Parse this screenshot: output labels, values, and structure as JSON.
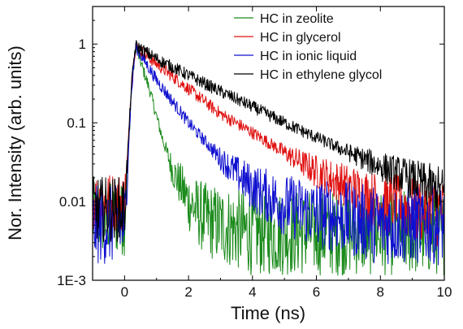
{
  "chart_data": {
    "type": "line",
    "xlabel": "Time (ns)",
    "ylabel": "Nor. Intensity (arb. units)",
    "x_scale": "linear",
    "y_scale": "log",
    "xlim": [
      -1,
      10
    ],
    "ylim": [
      0.001,
      3
    ],
    "x_ticks": [
      0,
      2,
      4,
      6,
      8,
      10
    ],
    "x_tick_labels": [
      "0",
      "2",
      "4",
      "6",
      "8",
      "10"
    ],
    "y_ticks": [
      0.001,
      0.01,
      0.1,
      1
    ],
    "y_tick_labels": [
      "1E-3",
      "0.01",
      "0.1",
      "1"
    ],
    "grid": false,
    "legend_position": "top-right",
    "series": [
      {
        "name": "HC in zeolite",
        "color": "#1a8a1a",
        "x": [
          -1,
          0,
          0.1,
          0.2,
          0.3,
          0.35,
          0.5,
          0.8,
          1.0,
          1.2,
          1.5,
          2.0,
          2.5,
          3,
          4,
          5,
          6,
          7,
          8,
          9,
          10
        ],
        "y": [
          0.006,
          0.006,
          0.03,
          0.2,
          0.6,
          0.92,
          0.6,
          0.25,
          0.12,
          0.06,
          0.025,
          0.01,
          0.006,
          0.005,
          0.004,
          0.004,
          0.004,
          0.004,
          0.004,
          0.004,
          0.004
        ]
      },
      {
        "name": "HC in glycerol",
        "color": "#e01010",
        "x": [
          -1,
          0,
          0.1,
          0.2,
          0.3,
          0.35,
          1,
          2,
          3,
          4,
          5,
          6,
          7,
          8,
          9,
          10
        ],
        "y": [
          0.01,
          0.01,
          0.04,
          0.25,
          0.7,
          0.92,
          0.56,
          0.27,
          0.13,
          0.075,
          0.042,
          0.024,
          0.015,
          0.01,
          0.008,
          0.007
        ]
      },
      {
        "name": "HC in ionic liquid",
        "color": "#1010d0",
        "x": [
          -1,
          0,
          0.1,
          0.2,
          0.3,
          0.35,
          1,
          2,
          3,
          4,
          5,
          6,
          7,
          8,
          9,
          10
        ],
        "y": [
          0.005,
          0.005,
          0.03,
          0.2,
          0.6,
          0.92,
          0.35,
          0.1,
          0.035,
          0.015,
          0.009,
          0.007,
          0.006,
          0.005,
          0.005,
          0.005
        ]
      },
      {
        "name": "HC in ethylene glycol",
        "color": "#000000",
        "x": [
          -1,
          0,
          0.1,
          0.2,
          0.3,
          0.35,
          1,
          2,
          3,
          4,
          5,
          6,
          7,
          8,
          9,
          10
        ],
        "y": [
          0.008,
          0.008,
          0.04,
          0.25,
          0.7,
          0.95,
          0.65,
          0.4,
          0.25,
          0.16,
          0.1,
          0.065,
          0.042,
          0.028,
          0.019,
          0.013
        ]
      }
    ]
  }
}
